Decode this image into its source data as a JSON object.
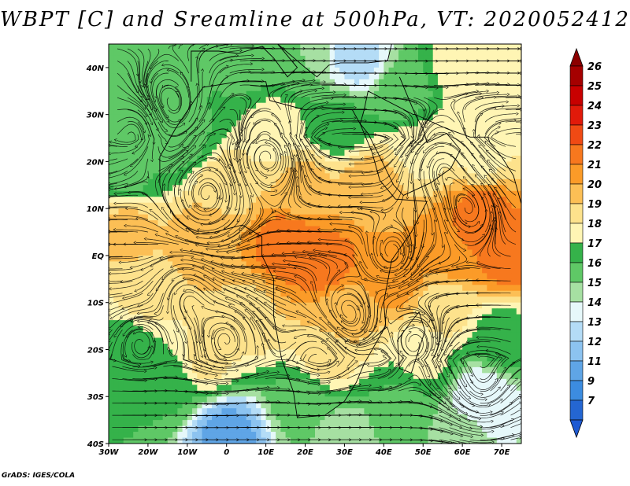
{
  "title": "WBPT [C] and Sreamline at 500hPa, VT: 2020052412",
  "credit": "GrADS: IGES/COLA",
  "map": {
    "projection": "lat-lon",
    "lon_range": [
      -30,
      75
    ],
    "lat_range": [
      -40,
      45
    ],
    "x_ticks": [
      {
        "value": -30,
        "label": "30W"
      },
      {
        "value": -20,
        "label": "20W"
      },
      {
        "value": -10,
        "label": "10W"
      },
      {
        "value": 0,
        "label": "0"
      },
      {
        "value": 10,
        "label": "10E"
      },
      {
        "value": 20,
        "label": "20E"
      },
      {
        "value": 30,
        "label": "30E"
      },
      {
        "value": 40,
        "label": "40E"
      },
      {
        "value": 50,
        "label": "50E"
      },
      {
        "value": 60,
        "label": "60E"
      },
      {
        "value": 70,
        "label": "70E"
      }
    ],
    "y_ticks": [
      {
        "value": 40,
        "label": "40N"
      },
      {
        "value": 30,
        "label": "30N"
      },
      {
        "value": 20,
        "label": "20N"
      },
      {
        "value": 10,
        "label": "10N"
      },
      {
        "value": 0,
        "label": "EQ"
      },
      {
        "value": -10,
        "label": "10S"
      },
      {
        "value": -20,
        "label": "20S"
      },
      {
        "value": -30,
        "label": "30S"
      },
      {
        "value": -40,
        "label": "40S"
      }
    ]
  },
  "colorbar": {
    "levels": [
      {
        "label": "26",
        "color": "#a50000"
      },
      {
        "label": "25",
        "color": "#c80000"
      },
      {
        "label": "24",
        "color": "#e11a0a"
      },
      {
        "label": "23",
        "color": "#f04a14"
      },
      {
        "label": "22",
        "color": "#f7781e"
      },
      {
        "label": "21",
        "color": "#fb9b28"
      },
      {
        "label": "20",
        "color": "#fcbf55"
      },
      {
        "label": "19",
        "color": "#fde28c"
      },
      {
        "label": "18",
        "color": "#fff5b4"
      },
      {
        "label": "17",
        "color": "#35b24a"
      },
      {
        "label": "16",
        "color": "#5fc866"
      },
      {
        "label": "15",
        "color": "#a6e0a2"
      },
      {
        "label": "14",
        "color": "#e6f8fa"
      },
      {
        "label": "13",
        "color": "#b4dcf6"
      },
      {
        "label": "12",
        "color": "#8cc3f0"
      },
      {
        "label": "11",
        "color": "#5fa5e6"
      },
      {
        "label": "9",
        "color": "#3c8ce0"
      },
      {
        "label": "7",
        "color": "#2466d2"
      }
    ],
    "top_color": "#8c0000",
    "bottom_color": "#1e5ad2"
  },
  "fields": [
    {
      "lon": -22,
      "lat": 32,
      "value": 16.5
    },
    {
      "lon": -10,
      "lat": 38,
      "value": 17
    },
    {
      "lon": 5,
      "lat": 40,
      "value": 16.8
    },
    {
      "lon": 20,
      "lat": 42,
      "value": 16
    },
    {
      "lon": 33,
      "lat": 42,
      "value": 13.5
    },
    {
      "lon": 45,
      "lat": 35,
      "value": 16.5
    },
    {
      "lon": 60,
      "lat": 40,
      "value": 18.5
    },
    {
      "lon": 70,
      "lat": 30,
      "value": 18.6
    },
    {
      "lon": -25,
      "lat": 18,
      "value": 16.8
    },
    {
      "lon": -12,
      "lat": 25,
      "value": 16.5
    },
    {
      "lon": 12,
      "lat": 27,
      "value": 18.5
    },
    {
      "lon": 28,
      "lat": 28,
      "value": 17.2
    },
    {
      "lon": 50,
      "lat": 22,
      "value": 18.7
    },
    {
      "lon": 65,
      "lat": 20,
      "value": 18.8
    },
    {
      "lon": 0,
      "lat": 15,
      "value": 19.6
    },
    {
      "lon": 20,
      "lat": 15,
      "value": 20.2
    },
    {
      "lon": 37,
      "lat": 15,
      "value": 20.6
    },
    {
      "lon": 65,
      "lat": 10,
      "value": 22.5
    },
    {
      "lon": -25,
      "lat": 5,
      "value": 20.3
    },
    {
      "lon": -5,
      "lat": 3,
      "value": 21
    },
    {
      "lon": 15,
      "lat": 2,
      "value": 22.8
    },
    {
      "lon": 25,
      "lat": -2,
      "value": 22.6
    },
    {
      "lon": 43,
      "lat": -5,
      "value": 21.5
    },
    {
      "lon": 58,
      "lat": 2,
      "value": 22
    },
    {
      "lon": 72,
      "lat": 0,
      "value": 22.6
    },
    {
      "lon": -20,
      "lat": -8,
      "value": 19.4
    },
    {
      "lon": 5,
      "lat": -12,
      "value": 19.8
    },
    {
      "lon": 30,
      "lat": -12,
      "value": 20.4
    },
    {
      "lon": 55,
      "lat": -12,
      "value": 19.3
    },
    {
      "lon": -25,
      "lat": -20,
      "value": 17.5
    },
    {
      "lon": -5,
      "lat": -22,
      "value": 19.2
    },
    {
      "lon": 25,
      "lat": -22,
      "value": 19.6
    },
    {
      "lon": 50,
      "lat": -22,
      "value": 18.2
    },
    {
      "lon": 70,
      "lat": -18,
      "value": 17.4
    },
    {
      "lon": -15,
      "lat": -28,
      "value": 17.1
    },
    {
      "lon": 20,
      "lat": -30,
      "value": 16.6
    },
    {
      "lon": 45,
      "lat": -32,
      "value": 16.8
    },
    {
      "lon": 65,
      "lat": -30,
      "value": 14
    },
    {
      "lon": 0,
      "lat": -38,
      "value": 11.5
    },
    {
      "lon": 30,
      "lat": -38,
      "value": 15.5
    },
    {
      "lon": 60,
      "lat": -38,
      "value": 15.2
    }
  ]
}
